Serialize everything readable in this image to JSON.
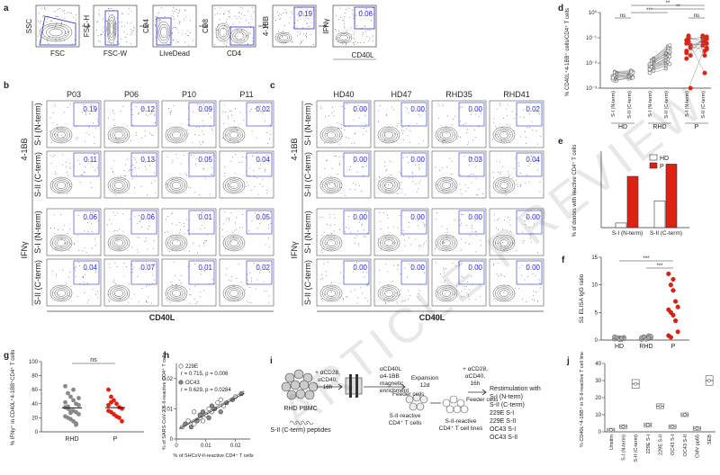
{
  "panel_letters": [
    "a",
    "b",
    "c",
    "d",
    "e",
    "f",
    "g",
    "h",
    "i",
    "j"
  ],
  "colors": {
    "red": "#e02010",
    "gray": "#888888",
    "blue": "#2a2ad0",
    "dark": "#222222"
  },
  "panel_a": {
    "plots": [
      {
        "x": "FSC",
        "y": "SSC"
      },
      {
        "x": "FSC-W",
        "y": "FSC-H"
      },
      {
        "x": "LiveDead",
        "y": "CD4"
      },
      {
        "x": "CD4",
        "y": "CD8"
      },
      {
        "x": "",
        "y": "4-1BB",
        "value": "0.19"
      },
      {
        "x": "",
        "y": "IFNγ",
        "value": "0.06"
      }
    ],
    "shared_x": "CD40L"
  },
  "panel_b": {
    "cols": [
      "P03",
      "P06",
      "P10",
      "P11"
    ],
    "row_labels": [
      "S-I (N-term)",
      "S-II (C-term)",
      "S-I (N-term)",
      "S-II (C-term)"
    ],
    "group_labels": [
      "4-1BB",
      "IFNγ"
    ],
    "xlabel": "CD40L",
    "values": [
      [
        "0.19",
        "0.12",
        "0.09",
        "0.02"
      ],
      [
        "0.11",
        "0.13",
        "0.05",
        "0.04"
      ],
      [
        "0.06",
        "0.06",
        "0.01",
        "0.05"
      ],
      [
        "0.04",
        "0.07",
        "0.01",
        "0.02"
      ]
    ]
  },
  "panel_c": {
    "cols": [
      "HD40",
      "HD47",
      "RHD35",
      "RHD41"
    ],
    "row_labels": [
      "S-I (N-term)",
      "S-II (C-term)",
      "S-I (N-term)",
      "S-II (C-term)"
    ],
    "group_labels": [
      "4-1BB",
      "IFNγ"
    ],
    "xlabel": "CD40L",
    "values": [
      [
        "0.00",
        "0.00",
        "0.00",
        "0.02"
      ],
      [
        "0.00",
        "0.00",
        "0.03",
        "0.04"
      ],
      [
        "0.00",
        "0.00",
        "0.00",
        "0.00"
      ],
      [
        "0.00",
        "0.00",
        "0.00",
        "0.00"
      ]
    ]
  },
  "chart_data": [
    {
      "panel": "d",
      "type": "scatter",
      "ylabel": "% CD40L⁺4-1BB⁺ cells/CD4⁺ T cells",
      "yscale": "log",
      "ylim": [
        0.001,
        1
      ],
      "groups": [
        "HD",
        "RHD",
        "P"
      ],
      "categories": [
        "S-I (N-term)",
        "S-II (C-term)",
        "S-I (N-term)",
        "S-II (C-term)",
        "S-I (N-term)",
        "S-II (C-term)"
      ],
      "significance": [
        "ns",
        "***",
        "ns",
        "**",
        "**"
      ],
      "series": [
        {
          "values": [
            0.003,
            0.002,
            0.004,
            0.0025,
            0.0035,
            0.002,
            0.003,
            0.0045,
            0.0028,
            0.0022,
            0.0032,
            0.0038,
            0.0026,
            0.0042
          ]
        },
        {
          "values": [
            0.0035,
            0.0025,
            0.0045,
            0.003,
            0.004,
            0.0028,
            0.0032,
            0.005,
            0.0026,
            0.0024,
            0.0036,
            0.0041,
            0.003,
            0.0046
          ]
        },
        {
          "values": [
            0.005,
            0.008,
            0.012,
            0.006,
            0.01,
            0.015,
            0.007,
            0.009,
            0.011,
            0.004,
            0.013,
            0.0065,
            0.0085,
            0.006,
            0.01,
            0.008,
            0.012,
            0.005,
            0.009,
            0.007,
            0.014,
            0.0055,
            0.0095
          ]
        },
        {
          "values": [
            0.008,
            0.015,
            0.025,
            0.01,
            0.03,
            0.04,
            0.012,
            0.02,
            0.035,
            0.006,
            0.045,
            0.018,
            0.022,
            0.011,
            0.028,
            0.016,
            0.038,
            0.009,
            0.024,
            0.014,
            0.05,
            0.013,
            0.03
          ]
        },
        {
          "values": [
            0.08,
            0.1,
            0.05,
            0.03,
            0.12,
            0.02,
            0.06,
            0.09,
            0.04,
            0.015,
            0.07,
            0.001,
            0.025,
            0.11,
            0.045
          ]
        },
        {
          "values": [
            0.12,
            0.08,
            0.06,
            0.1,
            0.03,
            0.11,
            0.05,
            0.02,
            0.09,
            0.07,
            0.004,
            0.04,
            0.1,
            0.06,
            0.035
          ]
        }
      ]
    },
    {
      "panel": "e",
      "type": "bar",
      "ylabel": "% of donors with reactive CD4⁺ T cells",
      "ylim": [
        0,
        100
      ],
      "categories": [
        "S-I (N-term)",
        "S-II (C-term)"
      ],
      "series": [
        {
          "name": "HD",
          "values": [
            6,
            35
          ]
        },
        {
          "name": "P",
          "values": [
            67,
            83
          ]
        }
      ]
    },
    {
      "panel": "f",
      "type": "scatter",
      "ylabel": "S1 ELISA IgG ratio",
      "ylim": [
        0,
        15
      ],
      "categories": [
        "HD",
        "RHD",
        "P"
      ],
      "significance": [
        "***",
        "***"
      ],
      "series": [
        {
          "values": [
            0.2,
            0.3,
            0.4,
            0.1,
            0.5,
            0.2,
            0.3,
            0.15,
            0.35,
            0.25,
            0.6,
            0.45,
            0.1,
            0.3
          ]
        },
        {
          "values": [
            0.3,
            0.5,
            0.2,
            0.8,
            0.4,
            0.1,
            0.6,
            0.35,
            0.25,
            0.7,
            0.45,
            0.55,
            0.15,
            0.4
          ]
        },
        {
          "values": [
            12,
            10,
            9,
            7,
            6,
            5.5,
            5,
            4.5,
            3.5,
            1.5,
            0.8,
            0.5,
            11
          ]
        }
      ]
    },
    {
      "panel": "g",
      "type": "scatter",
      "ylabel": "% IFNγ⁺ in CD40L⁺4-1BB⁺CD4⁺ T cells",
      "ylim": [
        0,
        100
      ],
      "yticks": [
        0,
        20,
        40,
        60,
        80,
        100
      ],
      "categories": [
        "RHD",
        "P"
      ],
      "significance": [
        "ns"
      ],
      "series": [
        {
          "values": [
            65,
            55,
            50,
            45,
            40,
            38,
            35,
            33,
            30,
            30,
            28,
            25,
            22,
            20,
            18,
            15,
            12,
            48,
            42,
            36,
            27,
            60,
            10
          ]
        },
        {
          "values": [
            60,
            50,
            45,
            40,
            35,
            33,
            30,
            28,
            25,
            22,
            20,
            15,
            38,
            42
          ]
        }
      ]
    },
    {
      "panel": "h",
      "type": "scatter",
      "xlabel": "% of SHCoV-II-reactive CD4⁺ T cells",
      "ylabel": "% of SARS-CoV-2 S-II-reactive CD4⁺ T cells",
      "xlim": [
        0,
        0.025
      ],
      "ylim": [
        0,
        0.025
      ],
      "xticks": [
        "0",
        "0.01",
        "0.02"
      ],
      "yticks": [
        "0",
        "0.01",
        "0.02"
      ],
      "legend": [
        "229E",
        "r = 0.715, p = 0.006",
        "OC43",
        "r = 0.629, p = 0.0284"
      ],
      "series": [
        {
          "name": "229E",
          "x": [
            0.002,
            0.004,
            0.006,
            0.008,
            0.01,
            0.012,
            0.014,
            0.016,
            0.02,
            0.006,
            0.009,
            0.011,
            0.015
          ],
          "y": [
            0.004,
            0.006,
            0.005,
            0.007,
            0.008,
            0.009,
            0.012,
            0.011,
            0.014,
            0.009,
            0.006,
            0.01,
            0.013
          ]
        },
        {
          "name": "OC43",
          "x": [
            0.003,
            0.005,
            0.007,
            0.009,
            0.011,
            0.013,
            0.017,
            0.019,
            0.008,
            0.012,
            0.015,
            0.022
          ],
          "y": [
            0.005,
            0.004,
            0.006,
            0.009,
            0.007,
            0.01,
            0.012,
            0.013,
            0.008,
            0.011,
            0.009,
            0.015
          ]
        }
      ]
    },
    {
      "panel": "j",
      "type": "scatter",
      "ylabel": "% CD40L⁺4-1BB⁺ in S-II-reactive T cell line",
      "ylim": [
        0,
        40
      ],
      "categories": [
        "Unstim",
        "S-I (N-term)",
        "S-II (C-term)",
        "229E S-I",
        "229E S-II",
        "OC43 S-I",
        "OC43 S-II",
        "CMV pp65",
        "SEB"
      ],
      "series": [
        {
          "values": [
            1,
            3,
            28,
            4,
            15,
            3,
            10,
            2,
            30
          ]
        }
      ]
    }
  ],
  "panel_i": {
    "pbmc": "RHD PBMC",
    "peptides": "S-II (C-term) peptides",
    "stim1": [
      "+ αCD28,",
      "αCD40,",
      "16h"
    ],
    "enrich": [
      "αCD40L",
      "α4-1BB",
      "magnetic",
      "enrichment"
    ],
    "expand": [
      "Expansion",
      "12d"
    ],
    "feeders1": "Feeder cells",
    "reactive": [
      "S-II-reactive",
      "CD4⁺ T cells"
    ],
    "lines": [
      "S-II-reactive",
      "CD4⁺ T cell lines"
    ],
    "stim2": [
      "+ αCD28,",
      "αCD40,",
      "16h"
    ],
    "feeders2": "Feeder cells",
    "restim_title": "Restimulation with",
    "restim": [
      "S-I (N-term)",
      "S-II (C-term)",
      "229E S-I",
      "229E S-II",
      "OC43 S-I",
      "OC43 S-II"
    ]
  },
  "legend_e": [
    "HD",
    "P"
  ],
  "watermark": "ARTICLE PREVIEW"
}
